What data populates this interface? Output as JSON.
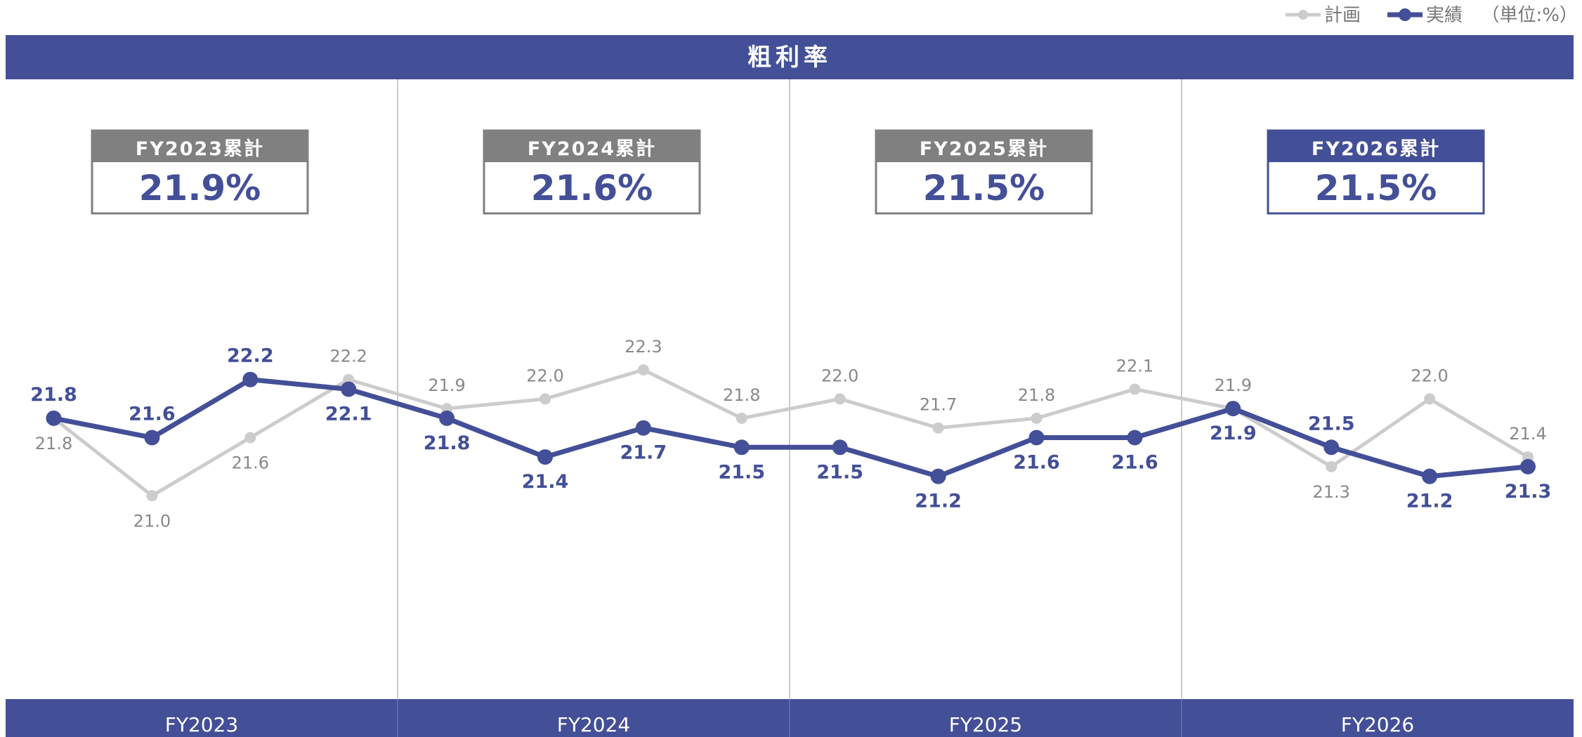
{
  "chart_data": {
    "type": "line",
    "title": "粗利率",
    "unit_label": "（単位:%）",
    "categories": [
      null,
      null,
      null,
      null,
      null,
      null,
      null,
      null,
      null,
      null,
      null,
      null,
      null,
      null,
      null,
      null
    ],
    "groups": [
      {
        "label": "FY2023",
        "summary_label": "FY2023累計",
        "summary_value": 21.9,
        "summary_value_label": "21.9%",
        "highlight": false
      },
      {
        "label": "FY2024",
        "summary_label": "FY2024累計",
        "summary_value": 21.6,
        "summary_value_label": "21.6%",
        "highlight": false
      },
      {
        "label": "FY2025",
        "summary_label": "FY2025累計",
        "summary_value": 21.5,
        "summary_value_label": "21.5%",
        "highlight": false
      },
      {
        "label": "FY2026",
        "summary_label": "FY2026累計",
        "summary_value": 21.5,
        "summary_value_label": "21.5%",
        "highlight": true
      }
    ],
    "series": [
      {
        "name": "計画",
        "color": "#cccccc",
        "values": [
          21.8,
          21.0,
          21.6,
          22.2,
          21.9,
          22.0,
          22.3,
          21.8,
          22.0,
          21.7,
          21.8,
          22.1,
          21.9,
          21.3,
          22.0,
          21.4
        ],
        "value_labels": [
          "21.8",
          "21.0",
          "21.6",
          "22.2",
          "21.9",
          "22.0",
          "22.3",
          "21.8",
          "22.0",
          "21.7",
          "21.8",
          "22.1",
          "21.9",
          "21.3",
          "22.0",
          "21.4"
        ]
      },
      {
        "name": "実績",
        "color": "#434f97",
        "values": [
          21.8,
          21.6,
          22.2,
          22.1,
          21.8,
          21.4,
          21.7,
          21.5,
          21.5,
          21.2,
          21.6,
          21.6,
          21.9,
          21.5,
          21.2,
          21.3
        ],
        "value_labels": [
          "21.8",
          "21.6",
          "22.2",
          "22.1",
          "21.8",
          "21.4",
          "21.7",
          "21.5",
          "21.5",
          "21.2",
          "21.6",
          "21.6",
          "21.9",
          "21.5",
          "21.2",
          "21.3"
        ]
      }
    ],
    "ylim": [
      18.9,
      25.3
    ]
  }
}
